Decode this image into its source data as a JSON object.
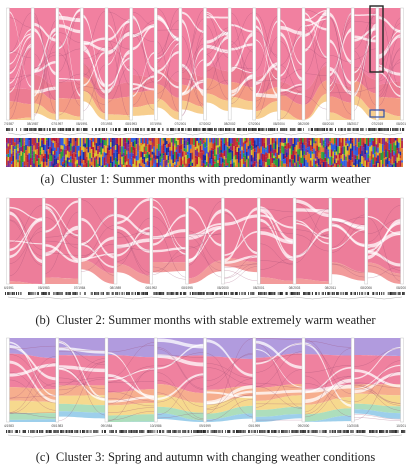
{
  "figure": {
    "panels": [
      {
        "caption_prefix": "(a)",
        "caption_text": "Cluster 1: Summer months with predominantly warm weather",
        "n_axes": 17,
        "axis_labels": [
          "07/1987",
          "08/1987",
          "07/1997",
          "08/1991",
          "07/1993",
          "08/1993",
          "07/1994",
          "07/2001",
          "07/2002",
          "08/2002",
          "07/2004",
          "08/2004",
          "08/2009",
          "08/2010",
          "08/2017",
          "07/2019",
          "08/2019"
        ],
        "palette": [
          "#ee6a8f",
          "#e9647f",
          "#f28a6e",
          "#f6c57a",
          "#f3b58a"
        ],
        "highlight_colors": [
          "#222222",
          "#2f4fa8"
        ],
        "heat_strip": true
      },
      {
        "caption_prefix": "(b)",
        "caption_text": "Cluster 2: Summer months with stable extremely warm weather",
        "n_axes": 12,
        "axis_labels": [
          "06/1991",
          "08/1983",
          "07/1984",
          "08/1989",
          "08/1992",
          "08/1995",
          "08/2000",
          "08/2001",
          "08/2003",
          "08/2011",
          "08/2006",
          "08/2008"
        ],
        "palette": [
          "#ea6688",
          "#e9607c",
          "#f08a8a"
        ]
      },
      {
        "caption_prefix": "(c)",
        "caption_text": "Cluster 3: Spring and autumn with changing weather conditions",
        "n_axes": 9,
        "axis_labels": [
          "04/1983",
          "05/1983",
          "09/1984",
          "10/1986",
          "09/1999",
          "05/1999",
          "09/2000",
          "10/2008",
          "10/2010"
        ],
        "palette": [
          "#a389d8",
          "#ec6b8e",
          "#f4a07a",
          "#f4d27a",
          "#9fd8b0",
          "#8cc7e8"
        ]
      }
    ]
  }
}
